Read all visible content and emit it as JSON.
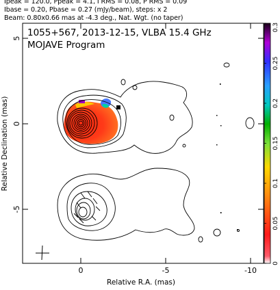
{
  "header": {
    "line1": "Ipeak = 120.0, Ppeak = 4.1, I RMS = 0.08, P RMS = 0.09",
    "line2": "Ibase = 0.20, Pbase = 0.27 (mJy/beam), steps: x 2",
    "line3": "Beam: 0.80x0.66 mas at -4.3 deg., Nat. Wgt. (no taper)"
  },
  "plot": {
    "source_label": "1055+567, 2013-12-15, VLBA 15.4 GHz",
    "program_label": "MOJAVE Program",
    "xlabel": "Relative R.A. (mas)",
    "ylabel": "Relative Declination (mas)",
    "xticks": [
      "0",
      "-5",
      "-10"
    ],
    "yticks": [
      "5",
      "0",
      "-5"
    ],
    "colorbar_ticks": [
      "0",
      "0.05",
      "0.1",
      "0.15",
      "0.2",
      "0.25",
      "0.3"
    ],
    "colorbar_range": [
      0,
      0.3
    ],
    "x_range": [
      3,
      -11
    ],
    "y_range": [
      6.3,
      -7.5
    ]
  },
  "chart_data": {
    "type": "heatmap",
    "title": "1055+567, 2013-12-15, VLBA 15.4 GHz",
    "xlabel": "Relative R.A. (mas)",
    "ylabel": "Relative Declination (mas)",
    "xlim": [
      3,
      -11
    ],
    "ylim": [
      -7.5,
      6.3
    ],
    "colorbar": {
      "min": 0,
      "max": 0.3,
      "ticks": [
        0,
        0.05,
        0.1,
        0.15,
        0.2,
        0.25,
        0.3
      ]
    },
    "stokes_i_peak_mjy_per_beam": 120.0,
    "polarized_peak_mjy_per_beam": 4.1
  }
}
